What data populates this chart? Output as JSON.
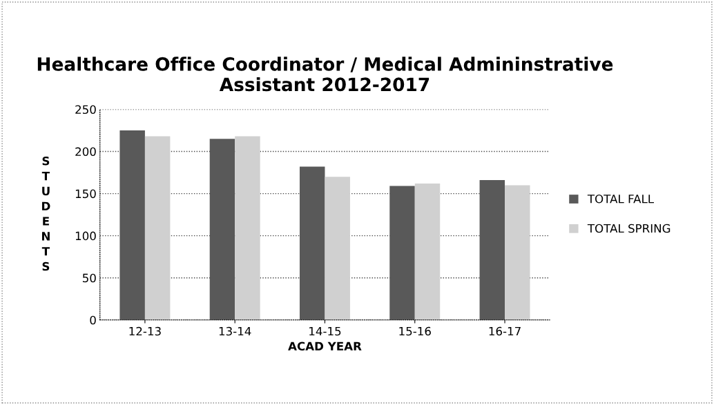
{
  "chart_data": {
    "type": "bar",
    "title": "Healthcare Office Coordinator / Medical Admininstrative Assistant 2012-2017",
    "xlabel": "ACAD YEAR",
    "ylabel": "STUDENTS",
    "categories": [
      "12-13",
      "13-14",
      "14-15",
      "15-16",
      "16-17"
    ],
    "series": [
      {
        "name": "TOTAL FALL",
        "color": "#595959",
        "values": [
          225,
          215,
          182,
          159,
          166
        ]
      },
      {
        "name": "TOTAL SPRING",
        "color": "#d0d0d0",
        "values": [
          218,
          218,
          170,
          162,
          160
        ]
      }
    ],
    "ylim": [
      0,
      250
    ],
    "yticks": [
      0,
      50,
      100,
      150,
      200,
      250
    ],
    "grid": "y",
    "legend": "right"
  }
}
